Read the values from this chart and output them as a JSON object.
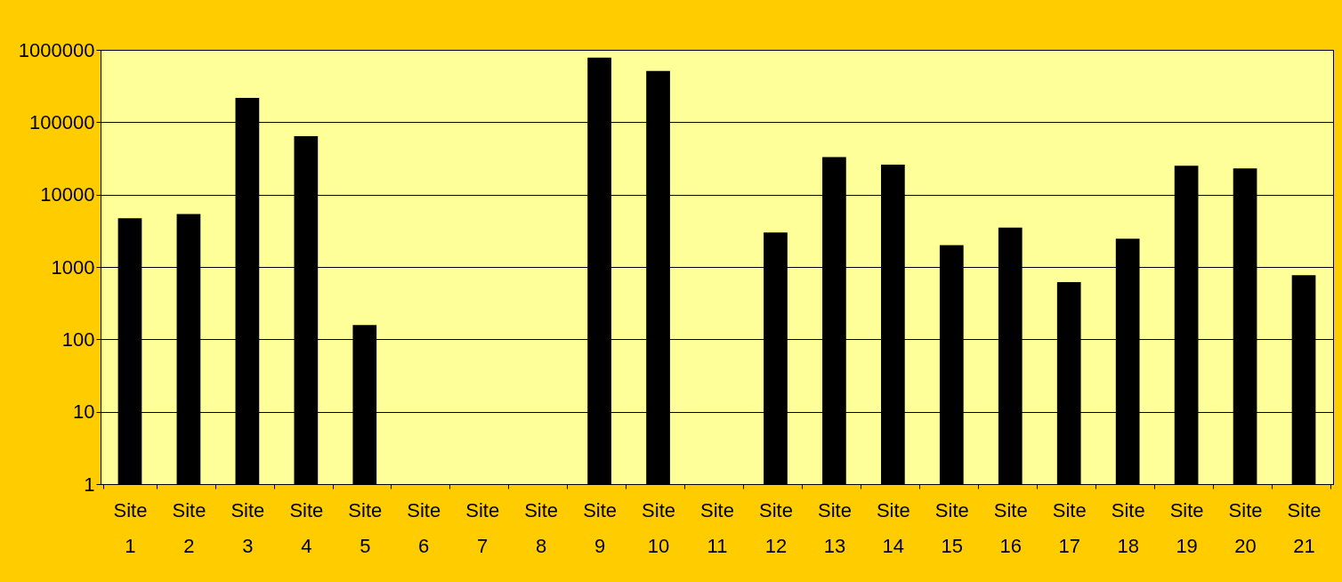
{
  "chart_data": {
    "type": "bar",
    "categories": [
      "Site 1",
      "Site 2",
      "Site 3",
      "Site 4",
      "Site 5",
      "Site 6",
      "Site 7",
      "Site 8",
      "Site 9",
      "Site 10",
      "Site 11",
      "Site 12",
      "Site 13",
      "Site 14",
      "Site 15",
      "Site 16",
      "Site 17",
      "Site 18",
      "Site 19",
      "Site 20",
      "Site 21"
    ],
    "values": [
      4700,
      5400,
      217000,
      64000,
      158,
      null,
      null,
      null,
      780000,
      510000,
      null,
      3000,
      33000,
      26000,
      2000,
      3500,
      620,
      2450,
      25000,
      23000,
      770
    ],
    "color": "#000000",
    "log": true,
    "ylim": [
      1,
      1000000
    ],
    "yticks": [
      1,
      10,
      100,
      1000,
      10000,
      100000,
      1000000
    ],
    "grid": "y"
  }
}
